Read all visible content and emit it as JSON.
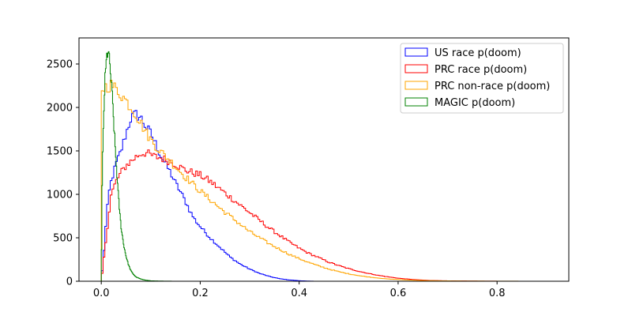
{
  "chart_data": {
    "type": "histogram",
    "title": "",
    "xlabel": "",
    "ylabel": "",
    "xlim": [
      -0.045,
      0.945
    ],
    "ylim": [
      0,
      2800
    ],
    "xticks": [
      0.0,
      0.2,
      0.4,
      0.6,
      0.8
    ],
    "xtick_labels": [
      "0.0",
      "0.2",
      "0.4",
      "0.6",
      "0.8"
    ],
    "yticks": [
      0,
      500,
      1000,
      1500,
      2000,
      2500
    ],
    "ytick_labels": [
      "0",
      "500",
      "1000",
      "1500",
      "2000",
      "2500"
    ],
    "grid": false,
    "legend_placement": "top-right",
    "series": [
      {
        "name": "US race p(doom)",
        "color": "#0000ff",
        "points": [
          [
            0.0,
            0
          ],
          [
            0.005,
            330
          ],
          [
            0.01,
            700
          ],
          [
            0.015,
            1000
          ],
          [
            0.02,
            1150
          ],
          [
            0.03,
            1350
          ],
          [
            0.04,
            1500
          ],
          [
            0.05,
            1700
          ],
          [
            0.06,
            1880
          ],
          [
            0.07,
            1920
          ],
          [
            0.08,
            1880
          ],
          [
            0.09,
            1780
          ],
          [
            0.1,
            1700
          ],
          [
            0.11,
            1580
          ],
          [
            0.12,
            1450
          ],
          [
            0.13,
            1350
          ],
          [
            0.14,
            1250
          ],
          [
            0.15,
            1130
          ],
          [
            0.16,
            1030
          ],
          [
            0.17,
            920
          ],
          [
            0.18,
            800
          ],
          [
            0.19,
            700
          ],
          [
            0.2,
            630
          ],
          [
            0.22,
            500
          ],
          [
            0.24,
            390
          ],
          [
            0.26,
            280
          ],
          [
            0.28,
            200
          ],
          [
            0.3,
            140
          ],
          [
            0.32,
            90
          ],
          [
            0.34,
            55
          ],
          [
            0.36,
            30
          ],
          [
            0.38,
            15
          ],
          [
            0.4,
            6
          ],
          [
            0.43,
            0
          ]
        ]
      },
      {
        "name": "PRC race p(doom)",
        "color": "#ff0000",
        "points": [
          [
            0.0,
            0
          ],
          [
            0.005,
            250
          ],
          [
            0.01,
            500
          ],
          [
            0.015,
            750
          ],
          [
            0.02,
            1000
          ],
          [
            0.03,
            1150
          ],
          [
            0.04,
            1250
          ],
          [
            0.05,
            1330
          ],
          [
            0.06,
            1380
          ],
          [
            0.07,
            1430
          ],
          [
            0.08,
            1470
          ],
          [
            0.09,
            1480
          ],
          [
            0.1,
            1450
          ],
          [
            0.11,
            1430
          ],
          [
            0.12,
            1420
          ],
          [
            0.13,
            1400
          ],
          [
            0.14,
            1380
          ],
          [
            0.15,
            1350
          ],
          [
            0.16,
            1310
          ],
          [
            0.17,
            1280
          ],
          [
            0.18,
            1260
          ],
          [
            0.19,
            1240
          ],
          [
            0.2,
            1220
          ],
          [
            0.22,
            1150
          ],
          [
            0.24,
            1060
          ],
          [
            0.26,
            970
          ],
          [
            0.28,
            880
          ],
          [
            0.3,
            790
          ],
          [
            0.32,
            700
          ],
          [
            0.34,
            610
          ],
          [
            0.36,
            530
          ],
          [
            0.38,
            450
          ],
          [
            0.4,
            380
          ],
          [
            0.42,
            320
          ],
          [
            0.44,
            270
          ],
          [
            0.46,
            220
          ],
          [
            0.48,
            180
          ],
          [
            0.5,
            145
          ],
          [
            0.52,
            115
          ],
          [
            0.54,
            90
          ],
          [
            0.56,
            68
          ],
          [
            0.58,
            50
          ],
          [
            0.6,
            35
          ],
          [
            0.63,
            20
          ],
          [
            0.66,
            10
          ],
          [
            0.7,
            5
          ],
          [
            0.75,
            2
          ],
          [
            0.82,
            0
          ]
        ]
      },
      {
        "name": "PRC non-race p(doom)",
        "color": "#ffa500",
        "points": [
          [
            0.0,
            2200
          ],
          [
            0.005,
            2230
          ],
          [
            0.01,
            2240
          ],
          [
            0.015,
            2250
          ],
          [
            0.02,
            2260
          ],
          [
            0.03,
            2210
          ],
          [
            0.04,
            2150
          ],
          [
            0.05,
            2080
          ],
          [
            0.06,
            2000
          ],
          [
            0.07,
            1920
          ],
          [
            0.08,
            1820
          ],
          [
            0.09,
            1720
          ],
          [
            0.1,
            1630
          ],
          [
            0.11,
            1560
          ],
          [
            0.12,
            1490
          ],
          [
            0.13,
            1440
          ],
          [
            0.14,
            1380
          ],
          [
            0.15,
            1320
          ],
          [
            0.16,
            1260
          ],
          [
            0.17,
            1200
          ],
          [
            0.18,
            1150
          ],
          [
            0.19,
            1090
          ],
          [
            0.2,
            1040
          ],
          [
            0.22,
            940
          ],
          [
            0.24,
            840
          ],
          [
            0.26,
            750
          ],
          [
            0.28,
            660
          ],
          [
            0.3,
            570
          ],
          [
            0.32,
            500
          ],
          [
            0.34,
            430
          ],
          [
            0.36,
            370
          ],
          [
            0.38,
            310
          ],
          [
            0.4,
            260
          ],
          [
            0.42,
            215
          ],
          [
            0.44,
            175
          ],
          [
            0.46,
            140
          ],
          [
            0.48,
            110
          ],
          [
            0.5,
            85
          ],
          [
            0.52,
            65
          ],
          [
            0.55,
            42
          ],
          [
            0.58,
            26
          ],
          [
            0.62,
            14
          ],
          [
            0.66,
            7
          ],
          [
            0.72,
            3
          ],
          [
            0.8,
            1
          ],
          [
            0.9,
            0
          ]
        ]
      },
      {
        "name": "MAGIC p(doom)",
        "color": "#008000",
        "points": [
          [
            0.0,
            0
          ],
          [
            0.002,
            1200
          ],
          [
            0.004,
            1700
          ],
          [
            0.006,
            2100
          ],
          [
            0.008,
            2350
          ],
          [
            0.01,
            2500
          ],
          [
            0.012,
            2620
          ],
          [
            0.014,
            2660
          ],
          [
            0.016,
            2550
          ],
          [
            0.018,
            2450
          ],
          [
            0.02,
            2300
          ],
          [
            0.022,
            2150
          ],
          [
            0.024,
            1950
          ],
          [
            0.026,
            1750
          ],
          [
            0.028,
            1550
          ],
          [
            0.03,
            1380
          ],
          [
            0.032,
            1200
          ],
          [
            0.034,
            1030
          ],
          [
            0.036,
            880
          ],
          [
            0.038,
            750
          ],
          [
            0.04,
            630
          ],
          [
            0.045,
            430
          ],
          [
            0.05,
            290
          ],
          [
            0.055,
            190
          ],
          [
            0.06,
            120
          ],
          [
            0.065,
            80
          ],
          [
            0.07,
            50
          ],
          [
            0.08,
            25
          ],
          [
            0.09,
            12
          ],
          [
            0.1,
            5
          ],
          [
            0.12,
            2
          ],
          [
            0.15,
            0
          ]
        ]
      }
    ]
  }
}
